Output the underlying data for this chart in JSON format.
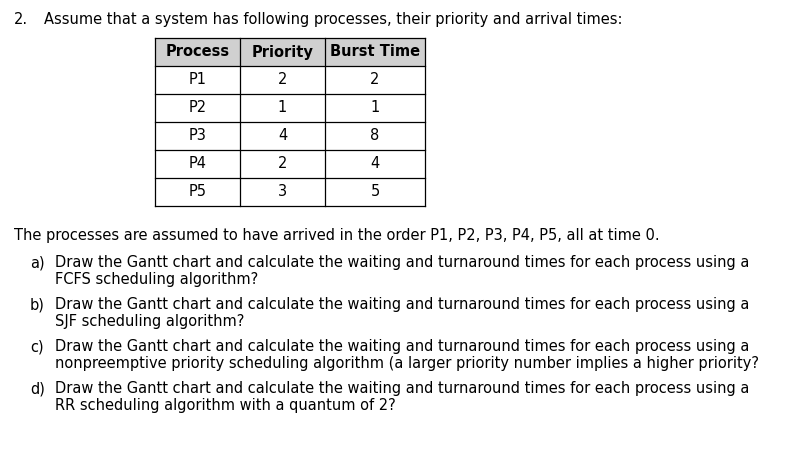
{
  "title_number": "2.",
  "title_text": "Assume that a system has following processes, their priority and arrival times:",
  "table_headers": [
    "Process",
    "Priority",
    "Burst Time"
  ],
  "table_data": [
    [
      "P1",
      "2",
      "2"
    ],
    [
      "P2",
      "1",
      "1"
    ],
    [
      "P3",
      "4",
      "8"
    ],
    [
      "P4",
      "2",
      "4"
    ],
    [
      "P5",
      "3",
      "5"
    ]
  ],
  "arrival_text": "The processes are assumed to have arrived in the order P1, P2, P3, P4, P5, all at time 0.",
  "items": [
    {
      "label": "a)",
      "line1": "Draw the Gantt chart and calculate the waiting and turnaround times for each process using a",
      "line2": "FCFS scheduling algorithm?"
    },
    {
      "label": "b)",
      "line1": "Draw the Gantt chart and calculate the waiting and turnaround times for each process using a",
      "line2": "SJF scheduling algorithm?"
    },
    {
      "label": "c)",
      "line1": "Draw the Gantt chart and calculate the waiting and turnaround times for each process using a",
      "line2": "nonpreemptive priority scheduling algorithm (a larger priority number implies a higher priority?"
    },
    {
      "label": "d)",
      "line1": "Draw the Gantt chart and calculate the waiting and turnaround times for each process using a",
      "line2": "RR scheduling algorithm with a quantum of 2?"
    }
  ],
  "bg_color": "#ffffff",
  "text_color": "#000000",
  "header_bg_color": "#d0d0d0",
  "table_border_color": "#000000",
  "font_size": 10.5
}
